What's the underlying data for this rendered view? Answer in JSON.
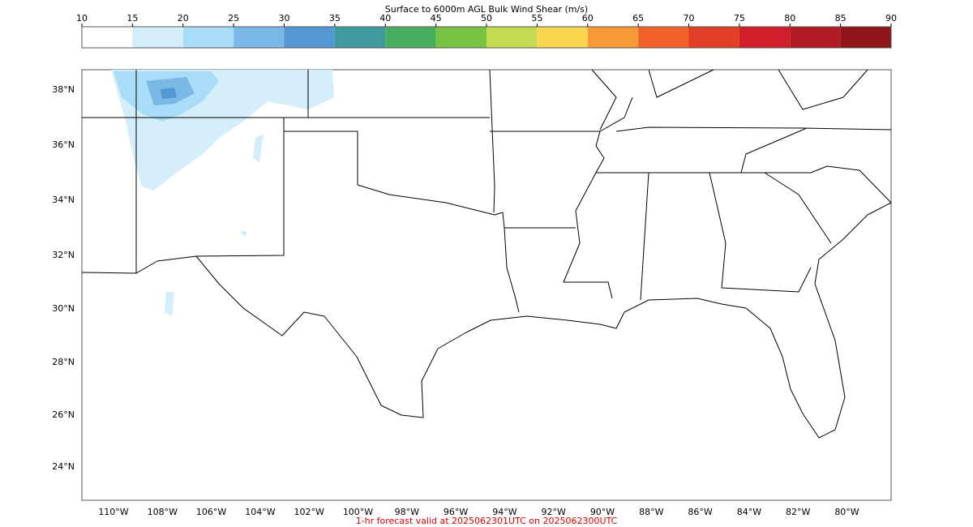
{
  "colorbar": {
    "title": "Surface to 6000m AGL Bulk Wind Shear (m/s)",
    "ticks": [
      10,
      15,
      20,
      25,
      30,
      35,
      40,
      45,
      50,
      55,
      60,
      65,
      70,
      75,
      80,
      85,
      90
    ],
    "colors": [
      "#ffffff",
      "#d4eefb",
      "#a9dcf6",
      "#7ab9e6",
      "#5597d3",
      "#3f9a9e",
      "#47ae5f",
      "#7ac244",
      "#c3da52",
      "#f9d550",
      "#f69a38",
      "#f0622a",
      "#e33f27",
      "#d11e2b",
      "#b01a22",
      "#8e1519"
    ]
  },
  "map": {
    "lat_labels": [
      "38°N",
      "36°N",
      "34°N",
      "32°N",
      "30°N",
      "28°N",
      "26°N",
      "24°N"
    ],
    "lon_labels": [
      "110°W",
      "108°W",
      "106°W",
      "104°W",
      "102°W",
      "100°W",
      "98°W",
      "96°W",
      "94°W",
      "92°W",
      "90°W",
      "88°W",
      "86°W",
      "84°W",
      "82°W",
      "80°W"
    ]
  },
  "footer": "1-hr forecast valid at 2025062301UTC on 2025062300UTC"
}
